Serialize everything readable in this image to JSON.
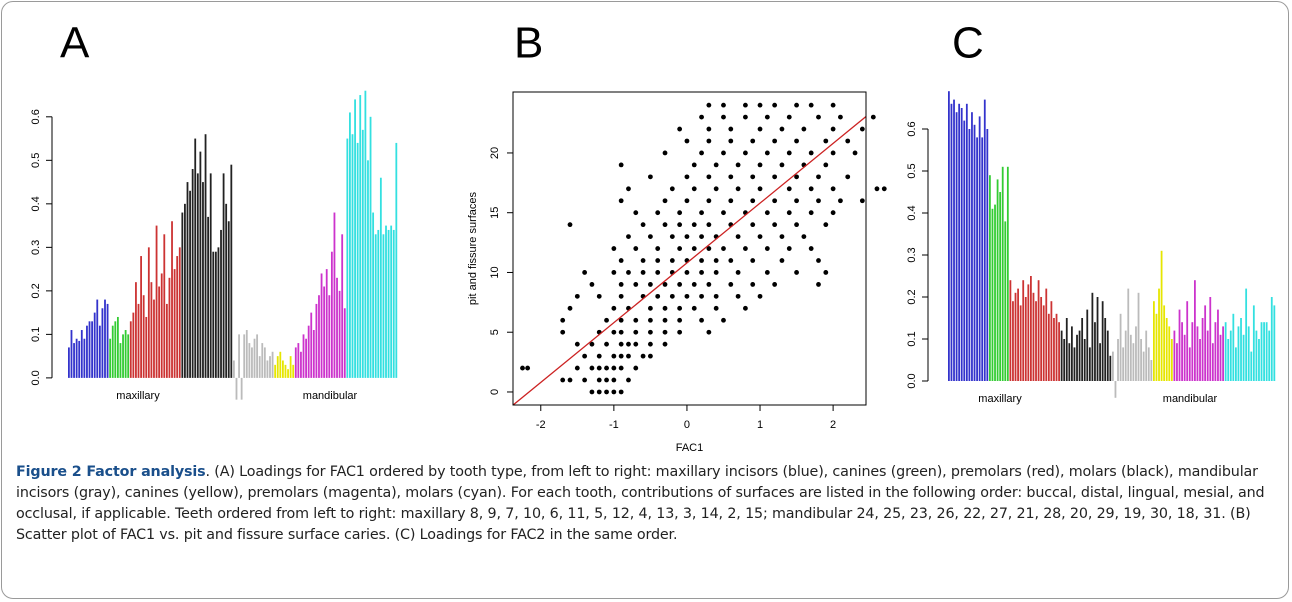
{
  "chart_data": [
    {
      "type": "bar",
      "panel_label": "A",
      "ylim": [
        -0.06,
        0.68
      ],
      "yticks": [
        {
          "value": 0,
          "label": "0.0"
        },
        0.1,
        0.2,
        0.3,
        0.4,
        0.5,
        0.6
      ],
      "group_labels": [
        "maxillary",
        "mandibular"
      ],
      "series": [
        {
          "color": "#3333cc",
          "values": [
            0.07,
            0.11,
            0.08,
            0.09,
            0.085,
            0.11,
            0.09,
            0.12,
            0.13,
            0.13,
            0.15,
            0.18,
            0.12,
            0.16,
            0.18,
            0.17
          ]
        },
        {
          "color": "#33cc33",
          "values": [
            0.09,
            0.12,
            0.13,
            0.14,
            0.08,
            0.1,
            0.11,
            0.1
          ]
        },
        {
          "color": "#cc3333",
          "values": [
            0.13,
            0.15,
            0.22,
            0.17,
            0.28,
            0.19,
            0.14,
            0.3,
            0.22,
            0.18,
            0.35,
            0.21,
            0.24,
            0.33,
            0.17,
            0.23,
            0.36,
            0.25,
            0.28,
            0.3
          ]
        },
        {
          "color": "#222222",
          "values": [
            0.38,
            0.4,
            0.45,
            0.43,
            0.48,
            0.55,
            0.47,
            0.52,
            0.45,
            0.56,
            0.37,
            0.47,
            0.29,
            0.29,
            0.3,
            0.34,
            0.47,
            0.4,
            0.36,
            0.49
          ]
        },
        {
          "color": "#bbbbbb",
          "values": [
            0.04,
            -0.05,
            0.1,
            -0.05,
            0.1,
            0.11,
            0.08,
            0.07,
            0.09,
            0.1,
            0.05,
            0.08,
            0.07,
            0.04,
            0.05,
            0.06
          ]
        },
        {
          "color": "#e6e600",
          "values": [
            0.03,
            0.05,
            0.06,
            0.04,
            0.03,
            0.02,
            0.05,
            0.03
          ]
        },
        {
          "color": "#cc33cc",
          "values": [
            0.07,
            0.08,
            0.06,
            0.1,
            0.09,
            0.12,
            0.15,
            0.11,
            0.17,
            0.19,
            0.24,
            0.21,
            0.25,
            0.19,
            0.29,
            0.38,
            0.23,
            0.2,
            0.33,
            0.16
          ]
        },
        {
          "color": "#33e0e0",
          "values": [
            0.55,
            0.61,
            0.56,
            0.64,
            0.54,
            0.65,
            0.57,
            0.66,
            0.5,
            0.6,
            0.38,
            0.33,
            0.34,
            0.46,
            0.33,
            0.35,
            0.34,
            0.35,
            0.34,
            0.54
          ]
        }
      ]
    },
    {
      "type": "scatter",
      "panel_label": "B",
      "x_label": "FAC1",
      "y_label": "pit and fissure surfaces",
      "xlim": [
        -2.38,
        2.45
      ],
      "ylim": [
        -1.09,
        25.1
      ],
      "xticks": [
        -2,
        -1,
        0,
        1,
        2
      ],
      "yticks": [
        0,
        5,
        10,
        15,
        20
      ],
      "color": "#000000",
      "fit_line": {
        "intercept": 10.8,
        "slope": 5.0,
        "color": "#cc2222"
      },
      "x": [
        -1.3,
        -1.2,
        -1.1,
        -1.0,
        -0.9,
        -1.7,
        -1.6,
        -1.4,
        -1.2,
        -1.1,
        -1.0,
        -0.8,
        -2.25,
        -2.18,
        -1.5,
        -1.3,
        -1.2,
        -1.1,
        -1.0,
        -0.9,
        -0.7,
        -1.4,
        -1.2,
        -1.0,
        -0.9,
        -0.8,
        -0.6,
        -0.5,
        -1.5,
        -1.3,
        -1.1,
        -0.9,
        -0.8,
        -0.7,
        -0.5,
        -0.3,
        -1.7,
        -1.2,
        -1.0,
        -0.9,
        -0.7,
        -0.5,
        -0.3,
        -0.1,
        0.3,
        -1.7,
        -1.1,
        -0.9,
        -0.7,
        -0.5,
        -0.3,
        -0.1,
        0.2,
        0.5,
        -1.6,
        -1.0,
        -0.8,
        -0.5,
        -0.3,
        -0.1,
        0.1,
        0.4,
        0.8,
        -1.5,
        -1.2,
        -0.9,
        -0.6,
        -0.4,
        -0.2,
        0.0,
        0.2,
        0.4,
        0.7,
        1.0,
        -1.3,
        -0.9,
        -0.7,
        -0.5,
        -0.3,
        -0.1,
        0.1,
        0.3,
        0.6,
        0.9,
        1.2,
        1.8,
        -1.4,
        -1.0,
        -0.8,
        -0.6,
        -0.4,
        -0.2,
        0.0,
        0.2,
        0.4,
        0.7,
        1.1,
        1.5,
        1.9,
        -0.9,
        -0.6,
        -0.4,
        -0.2,
        0.0,
        0.2,
        0.4,
        0.6,
        0.9,
        1.3,
        1.8,
        -1.0,
        -0.7,
        -0.4,
        -0.1,
        0.1,
        0.3,
        0.5,
        0.8,
        1.1,
        1.4,
        1.7,
        -0.8,
        -0.5,
        -0.2,
        0.0,
        0.2,
        0.4,
        0.7,
        1.0,
        1.3,
        1.6,
        -1.6,
        -0.6,
        -0.3,
        -0.1,
        0.1,
        0.3,
        0.6,
        0.9,
        1.2,
        1.5,
        1.9,
        -0.7,
        -0.4,
        -0.1,
        0.2,
        0.5,
        0.8,
        1.1,
        1.4,
        1.7,
        2.0,
        -0.9,
        -0.3,
        0.0,
        0.3,
        0.6,
        0.9,
        1.2,
        1.5,
        1.8,
        2.1,
        2.4,
        -0.8,
        -0.2,
        0.1,
        0.4,
        0.7,
        1.0,
        1.4,
        1.7,
        2.0,
        2.6,
        2.7,
        -0.5,
        0.0,
        0.3,
        0.6,
        0.9,
        1.2,
        1.5,
        1.8,
        2.2,
        -0.9,
        0.1,
        0.4,
        0.7,
        1.0,
        1.3,
        1.6,
        1.9,
        -0.3,
        0.2,
        0.5,
        0.8,
        1.1,
        1.4,
        1.7,
        2.0,
        2.3,
        0.0,
        0.3,
        0.6,
        0.9,
        1.2,
        1.5,
        1.9,
        2.2,
        -0.1,
        0.3,
        0.6,
        1.0,
        1.3,
        1.6,
        2.0,
        2.4,
        0.2,
        0.5,
        0.8,
        1.1,
        1.4,
        1.8,
        2.1,
        2.55,
        0.3,
        0.5,
        0.8,
        1.0,
        1.2,
        1.5,
        1.7,
        2.0
      ],
      "values": [
        0,
        0,
        0,
        0,
        0,
        1,
        1,
        1,
        1,
        1,
        1,
        1,
        2,
        2,
        2,
        2,
        2,
        2,
        2,
        2,
        2,
        3,
        3,
        3,
        3,
        3,
        3,
        3,
        4,
        4,
        4,
        4,
        4,
        4,
        4,
        4,
        5,
        5,
        5,
        5,
        5,
        5,
        5,
        5,
        5,
        6,
        6,
        6,
        6,
        6,
        6,
        6,
        6,
        6,
        7,
        7,
        7,
        7,
        7,
        7,
        7,
        7,
        7,
        8,
        8,
        8,
        8,
        8,
        8,
        8,
        8,
        8,
        8,
        8,
        9,
        9,
        9,
        9,
        9,
        9,
        9,
        9,
        9,
        9,
        9,
        9,
        10,
        10,
        10,
        10,
        10,
        10,
        10,
        10,
        10,
        10,
        10,
        10,
        10,
        11,
        11,
        11,
        11,
        11,
        11,
        11,
        11,
        11,
        11,
        11,
        12,
        12,
        12,
        12,
        12,
        12,
        12,
        12,
        12,
        12,
        12,
        13,
        13,
        13,
        13,
        13,
        13,
        13,
        13,
        13,
        13,
        14,
        14,
        14,
        14,
        14,
        14,
        14,
        14,
        14,
        14,
        14,
        15,
        15,
        15,
        15,
        15,
        15,
        15,
        15,
        15,
        15,
        16,
        16,
        16,
        16,
        16,
        16,
        16,
        16,
        16,
        16,
        16,
        17,
        17,
        17,
        17,
        17,
        17,
        17,
        17,
        17,
        17,
        17,
        18,
        18,
        18,
        18,
        18,
        18,
        18,
        18,
        18,
        19,
        19,
        19,
        19,
        19,
        19,
        19,
        19,
        20,
        20,
        20,
        20,
        20,
        20,
        20,
        20,
        20,
        21,
        21,
        21,
        21,
        21,
        21,
        21,
        21,
        22,
        22,
        22,
        22,
        22,
        22,
        22,
        22,
        23,
        23,
        23,
        23,
        23,
        23,
        23,
        23,
        24,
        24,
        24,
        24,
        24,
        24,
        24,
        24
      ]
    },
    {
      "type": "bar",
      "panel_label": "C",
      "ylim": [
        -0.05,
        0.7
      ],
      "yticks": [
        {
          "value": 0,
          "label": "0.0"
        },
        0.1,
        0.2,
        0.3,
        0.4,
        0.5,
        0.6
      ],
      "group_labels": [
        "maxillary",
        "mandibular"
      ],
      "series": [
        {
          "color": "#3333cc",
          "values": [
            0.69,
            0.66,
            0.67,
            0.64,
            0.66,
            0.65,
            0.62,
            0.66,
            0.6,
            0.64,
            0.61,
            0.58,
            0.63,
            0.58,
            0.67,
            0.6
          ]
        },
        {
          "color": "#33cc33",
          "values": [
            0.49,
            0.41,
            0.42,
            0.48,
            0.45,
            0.51,
            0.38,
            0.51
          ]
        },
        {
          "color": "#cc3333",
          "values": [
            0.24,
            0.19,
            0.21,
            0.22,
            0.18,
            0.24,
            0.2,
            0.23,
            0.25,
            0.21,
            0.19,
            0.24,
            0.2,
            0.18,
            0.22,
            0.16,
            0.19,
            0.15,
            0.16,
            0.14
          ]
        },
        {
          "color": "#222222",
          "values": [
            0.12,
            0.1,
            0.15,
            0.09,
            0.13,
            0.08,
            0.11,
            0.12,
            0.15,
            0.1,
            0.17,
            0.08,
            0.21,
            0.14,
            0.2,
            0.09,
            0.19,
            0.15,
            0.12,
            0.06
          ]
        },
        {
          "color": "#bbbbbb",
          "values": [
            0.07,
            -0.04,
            0.1,
            0.16,
            0.08,
            0.12,
            0.22,
            0.11,
            0.09,
            0.13,
            0.21,
            0.1,
            0.07,
            0.12,
            0.08,
            0.05
          ]
        },
        {
          "color": "#e6e600",
          "values": [
            0.19,
            0.16,
            0.22,
            0.31,
            0.18,
            0.15,
            0.13,
            0.1
          ]
        },
        {
          "color": "#cc33cc",
          "values": [
            0.12,
            0.09,
            0.17,
            0.14,
            0.11,
            0.19,
            0.08,
            0.14,
            0.24,
            0.13,
            0.1,
            0.15,
            0.18,
            0.12,
            0.2,
            0.09,
            0.14,
            0.17,
            0.11,
            0.13
          ]
        },
        {
          "color": "#33e0e0",
          "values": [
            0.14,
            0.1,
            0.12,
            0.16,
            0.08,
            0.13,
            0.15,
            0.11,
            0.22,
            0.13,
            0.07,
            0.18,
            0.12,
            0.1,
            0.14,
            0.14,
            0.14,
            0.12,
            0.2,
            0.18
          ]
        }
      ]
    }
  ],
  "caption": {
    "label": "Figure 2 Factor analysis",
    "text": ". (A) Loadings for FAC1 ordered by tooth type, from left to right: maxillary incisors (blue), canines (green), premolars (red), molars (black), mandibular incisors (gray), canines (yellow), premolars (magenta), molars (cyan). For each tooth, contributions of surfaces are listed in the following order: buccal, distal, lingual, mesial, and occlusal, if applicable. Teeth ordered from left to right: maxillary 8, 9, 7, 10, 6, 11, 5, 12, 4, 13, 3, 14, 2, 15; mandibular 24, 25, 23, 26, 22, 27, 21, 28, 20, 29, 19, 30, 18, 31. (B) Scatter plot of FAC1 vs. pit and fissure surface caries. (C) Loadings for FAC2 in the same order."
  }
}
